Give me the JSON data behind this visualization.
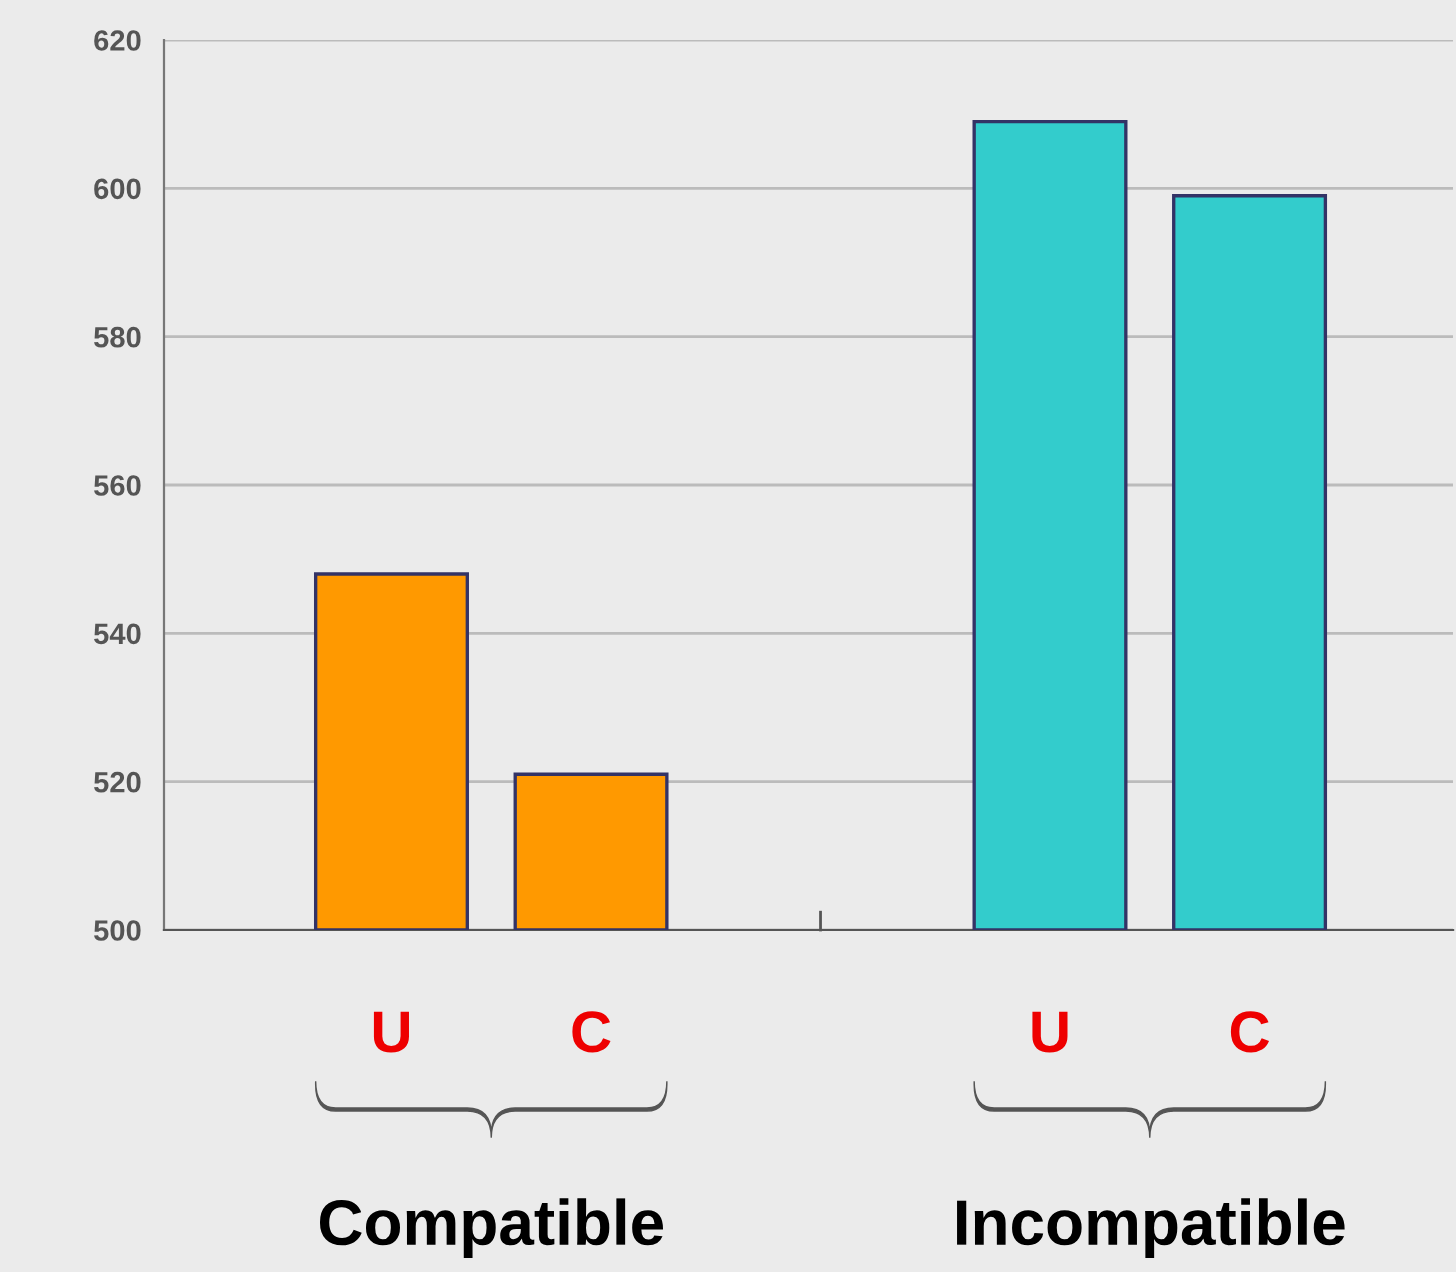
{
  "chart_data": {
    "type": "bar",
    "categories": [
      "U",
      "C",
      "U",
      "C"
    ],
    "values": [
      548,
      521,
      609,
      599
    ],
    "colors": [
      "#ff9900",
      "#ff9900",
      "#33cccc",
      "#33cccc"
    ],
    "ylim": [
      500,
      620
    ],
    "yticks": [
      500,
      520,
      540,
      560,
      580,
      600,
      620
    ],
    "grid": "y",
    "annotations": [
      "Compatible",
      "Incompatible"
    ]
  }
}
